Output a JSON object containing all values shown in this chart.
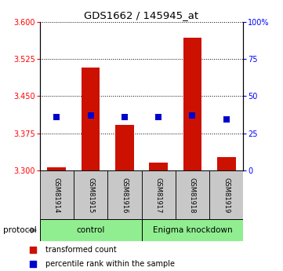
{
  "title": "GDS1662 / 145945_at",
  "samples": [
    "GSM81914",
    "GSM81915",
    "GSM81916",
    "GSM81917",
    "GSM81918",
    "GSM81919"
  ],
  "red_values": [
    3.307,
    3.507,
    3.393,
    3.317,
    3.568,
    3.327
  ],
  "blue_values": [
    3.408,
    3.412,
    3.408,
    3.408,
    3.412,
    3.403
  ],
  "ylim_left": [
    3.3,
    3.6
  ],
  "ylim_right": [
    0,
    100
  ],
  "yticks_left": [
    3.3,
    3.375,
    3.45,
    3.525,
    3.6
  ],
  "yticks_right": [
    0,
    25,
    50,
    75,
    100
  ],
  "ytick_labels_right": [
    "0",
    "25",
    "50",
    "75",
    "100%"
  ],
  "bar_color": "#cc1100",
  "dot_color": "#0000cc",
  "bar_width": 0.55,
  "dot_size": 30,
  "legend_items": [
    {
      "label": "transformed count",
      "color": "#cc1100"
    },
    {
      "label": "percentile rank within the sample",
      "color": "#0000cc"
    }
  ],
  "group_color": "#90ee90",
  "label_bg": "#c8c8c8"
}
